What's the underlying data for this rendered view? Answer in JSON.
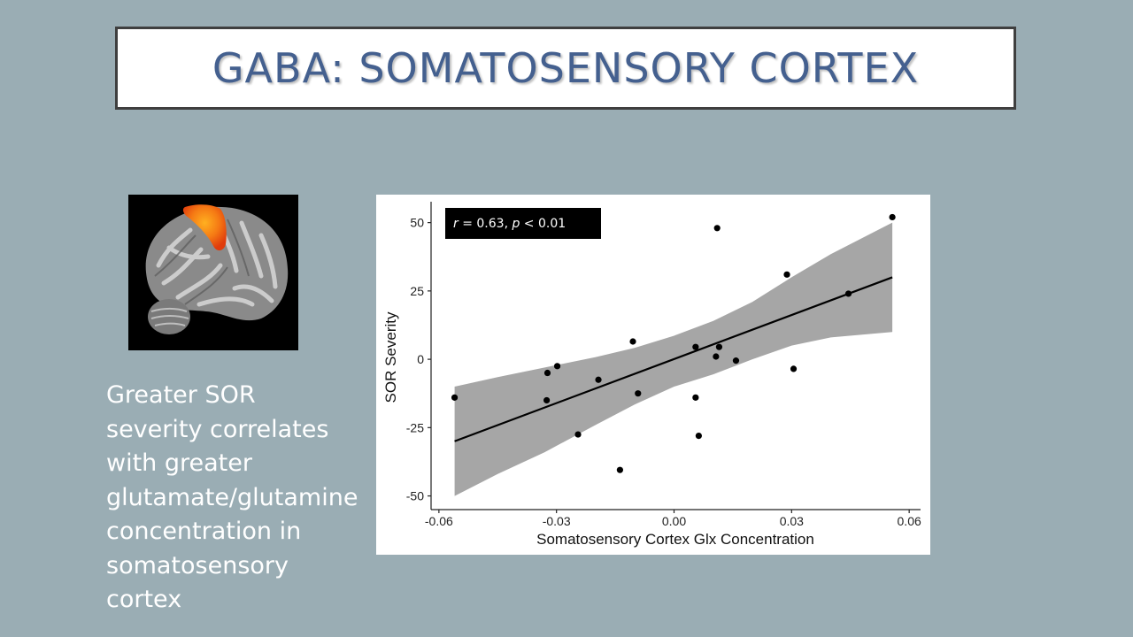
{
  "slide": {
    "title": "GABA: SOMATOSENSORY CORTEX",
    "caption_lines": [
      "Greater SOR",
      "severity correlates",
      "with greater",
      "glutamate/glutamine",
      "concentration in",
      "somatosensory",
      "cortex"
    ]
  },
  "colors": {
    "background": "#9aadb4",
    "title_text": "#44608f",
    "ribbon": "#a6a6a6",
    "activation": "#f05a14"
  },
  "chart_data": {
    "type": "scatter",
    "xlabel": "Somatosensory Cortex Glx Concentration",
    "ylabel": "SOR Severity",
    "xlim": [
      -0.062,
      0.062
    ],
    "ylim": [
      -55,
      57
    ],
    "x_ticks": [
      -0.06,
      -0.03,
      0.0,
      0.03,
      0.06
    ],
    "x_tick_labels": [
      "-0.06",
      "-0.03",
      "0.00",
      "0.03",
      "0.06"
    ],
    "y_ticks": [
      -50,
      -25,
      0,
      25,
      50
    ],
    "y_tick_labels": [
      "-50",
      "-25",
      "0",
      "25",
      "50"
    ],
    "annotation": {
      "r_symbol": "r",
      "r_text": " = 0.63, ",
      "p_symbol": "p",
      "p_text": " < 0.01"
    },
    "points": [
      {
        "x": -0.056,
        "y": -14
      },
      {
        "x": -0.0325,
        "y": -15
      },
      {
        "x": -0.0323,
        "y": -5
      },
      {
        "x": -0.0298,
        "y": -2.5
      },
      {
        "x": -0.0245,
        "y": -27.5
      },
      {
        "x": -0.0193,
        "y": -7.5
      },
      {
        "x": -0.0138,
        "y": -40.5
      },
      {
        "x": -0.0105,
        "y": 6.5
      },
      {
        "x": -0.0092,
        "y": -12.5
      },
      {
        "x": 0.0055,
        "y": 4.5
      },
      {
        "x": 0.0055,
        "y": -14
      },
      {
        "x": 0.0063,
        "y": -28
      },
      {
        "x": 0.0107,
        "y": 1
      },
      {
        "x": 0.011,
        "y": 48
      },
      {
        "x": 0.0115,
        "y": 4.5
      },
      {
        "x": 0.0158,
        "y": -0.5
      },
      {
        "x": 0.0288,
        "y": 31
      },
      {
        "x": 0.0305,
        "y": -3.5
      },
      {
        "x": 0.0445,
        "y": 24
      },
      {
        "x": 0.0557,
        "y": 52
      }
    ],
    "fit_line": {
      "x0": -0.056,
      "y0": -30,
      "x1": 0.0557,
      "y1": 30
    },
    "confidence_band": {
      "x": [
        -0.056,
        -0.045,
        -0.033,
        -0.02,
        -0.01,
        0.0,
        0.01,
        0.02,
        0.03,
        0.04,
        0.0557
      ],
      "upper": [
        -10,
        -6.5,
        -3,
        0.8,
        4.2,
        8.6,
        14,
        21,
        30,
        38.5,
        50
      ],
      "lower": [
        -50,
        -42,
        -34,
        -24,
        -16.5,
        -10,
        -5.5,
        0,
        5,
        8,
        10
      ]
    }
  }
}
